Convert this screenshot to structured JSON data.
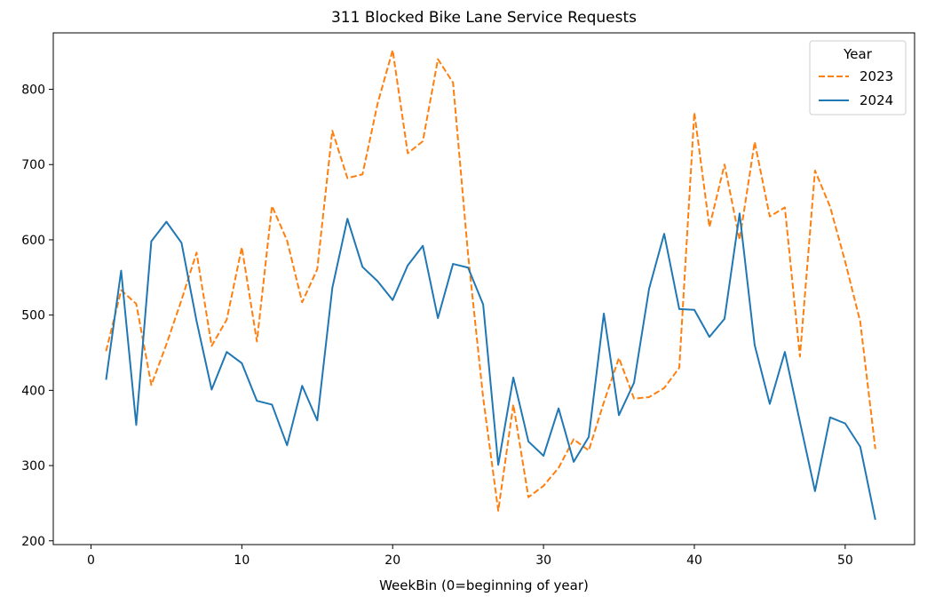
{
  "chart_data": {
    "type": "line",
    "title": "311 Blocked Bike Lane Service Requests",
    "xlabel": "WeekBin (0=beginning of year)",
    "ylabel": "",
    "xlim": [
      -2.5,
      54.6
    ],
    "ylim": [
      195,
      875
    ],
    "xticks": [
      0,
      10,
      20,
      30,
      40,
      50
    ],
    "yticks": [
      200,
      300,
      400,
      500,
      600,
      700,
      800
    ],
    "grid": false,
    "legend": {
      "title": "Year",
      "placement": "top-right"
    },
    "x": [
      1,
      2,
      3,
      4,
      5,
      6,
      7,
      8,
      9,
      10,
      11,
      12,
      13,
      14,
      15,
      16,
      17,
      18,
      19,
      20,
      21,
      22,
      23,
      24,
      25,
      26,
      27,
      28,
      29,
      30,
      31,
      32,
      33,
      34,
      35,
      36,
      37,
      38,
      39,
      40,
      41,
      42,
      43,
      44,
      45,
      46,
      47,
      48,
      49,
      50,
      51,
      52
    ],
    "series": [
      {
        "name": "2023",
        "color": "#ff7f0e",
        "dash": "dashed",
        "values": [
          452,
          533,
          515,
          407,
          461,
          520,
          583,
          459,
          494,
          590,
          465,
          645,
          599,
          517,
          561,
          745,
          682,
          687,
          781,
          852,
          715,
          731,
          840,
          809,
          580,
          390,
          240,
          381,
          258,
          273,
          297,
          335,
          320,
          384,
          443,
          389,
          391,
          403,
          430,
          769,
          617,
          700,
          600,
          730,
          631,
          643,
          445,
          692,
          644,
          571,
          491,
          322
        ]
      },
      {
        "name": "2024",
        "color": "#1f77b4",
        "dash": "solid",
        "values": [
          414,
          559,
          354,
          598,
          624,
          596,
          492,
          401,
          451,
          436,
          386,
          381,
          327,
          406,
          360,
          536,
          628,
          564,
          545,
          520,
          566,
          592,
          496,
          568,
          563,
          514,
          301,
          417,
          332,
          313,
          376,
          305,
          338,
          502,
          367,
          410,
          535,
          608,
          508,
          507,
          471,
          495,
          635,
          460,
          382,
          451,
          358,
          266,
          364,
          356,
          325,
          228
        ]
      }
    ]
  }
}
